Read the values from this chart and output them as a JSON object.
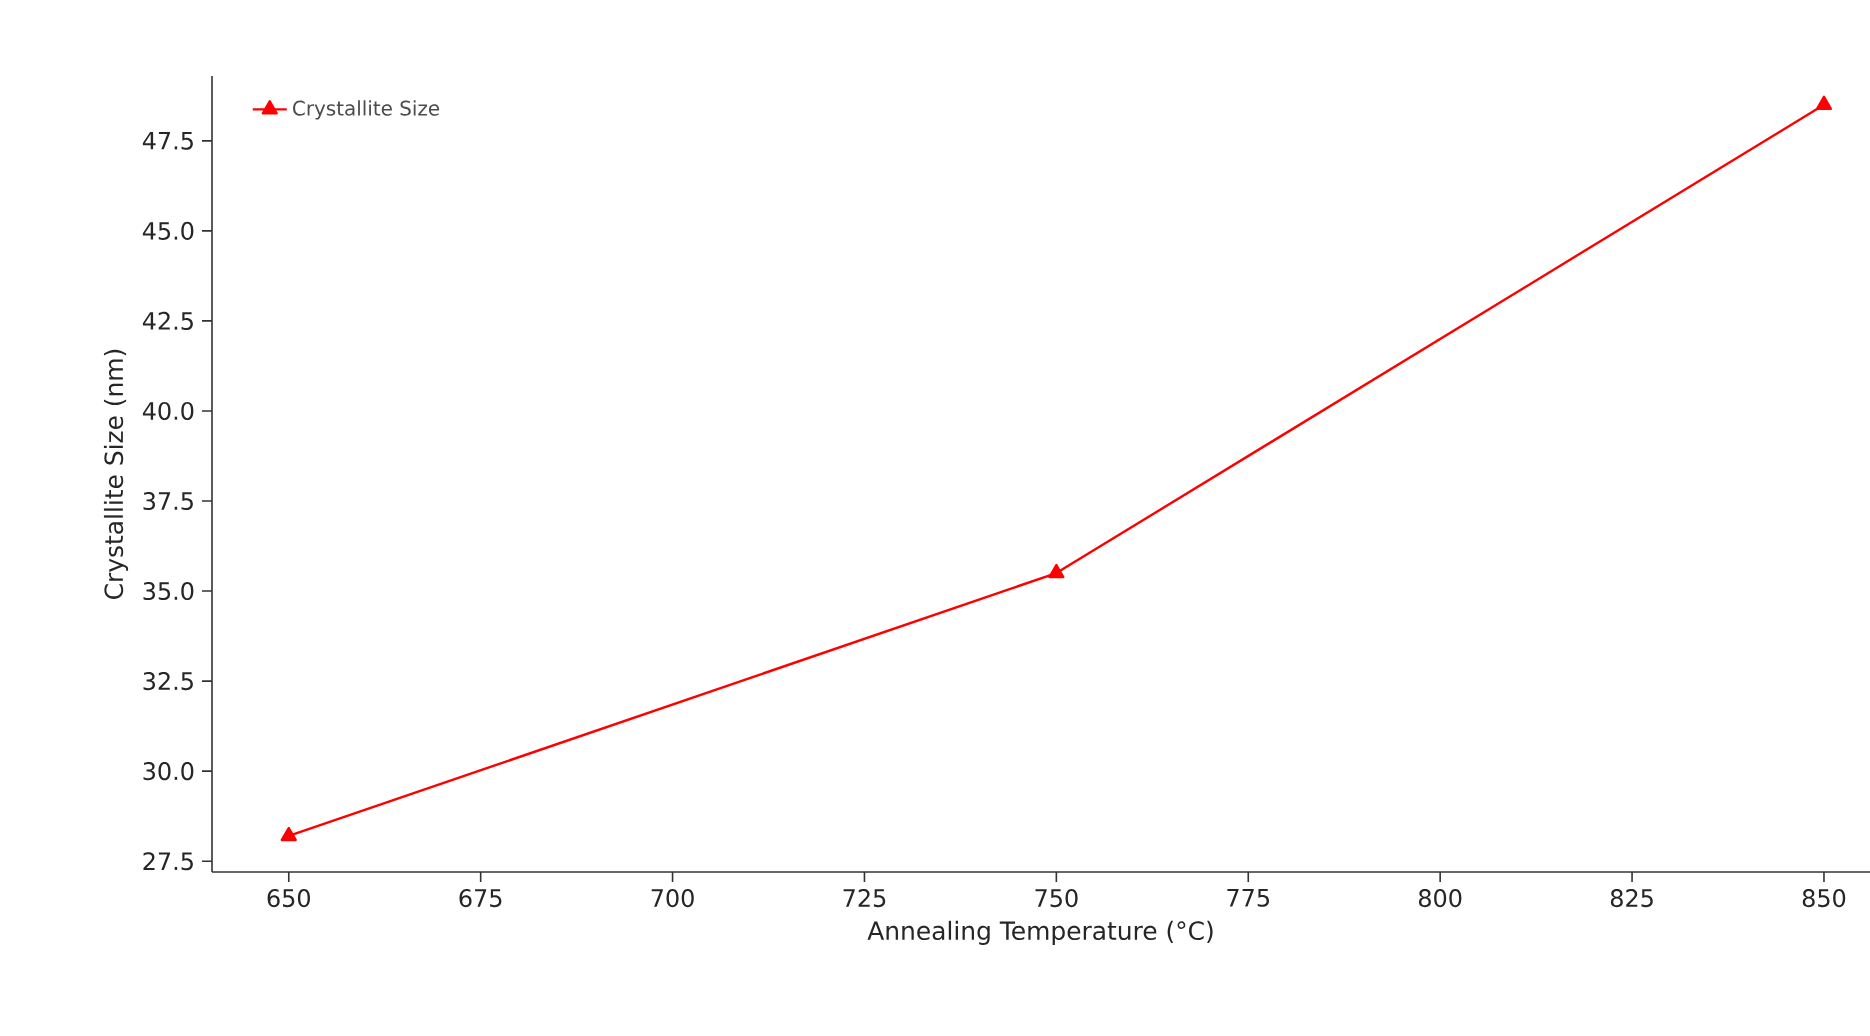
{
  "chart_data": {
    "type": "line",
    "xlabel": "Annealing Temperature (°C)",
    "ylabel": "Crystallite Size (nm)",
    "x": [
      650,
      750,
      850
    ],
    "series": [
      {
        "name": "Crystallite Size",
        "color": "#ff0000",
        "values": [
          28.2,
          35.5,
          48.5
        ]
      }
    ],
    "xlim": [
      640,
      856
    ],
    "ylim": [
      27.2,
      49.3
    ],
    "xticks": [
      650,
      675,
      700,
      725,
      750,
      775,
      800,
      825,
      850
    ],
    "yticks": [
      {
        "value": 27.5,
        "label": "27.5"
      },
      {
        "value": 30,
        "label": "30.0"
      },
      {
        "value": 32.5,
        "label": "32.5"
      },
      {
        "value": 35,
        "label": "35.0"
      },
      {
        "value": 37.5,
        "label": "37.5"
      },
      {
        "value": 40,
        "label": "40.0"
      },
      {
        "value": 42.5,
        "label": "42.5"
      },
      {
        "value": 45,
        "label": "45.0"
      },
      {
        "value": 47.5,
        "label": "47.5"
      }
    ],
    "grid": false,
    "legend": "top left",
    "marker": "triangle",
    "line_style": "solid"
  }
}
